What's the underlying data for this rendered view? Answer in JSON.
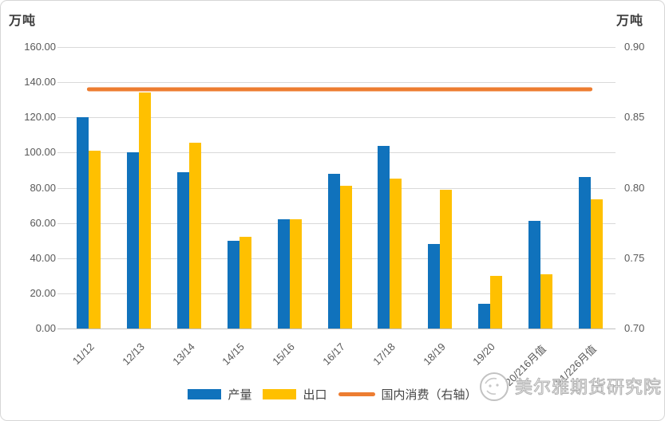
{
  "chart_data": {
    "type": "bar",
    "subtype": "grouped-bars-with-right-axis-line",
    "title": "",
    "categories": [
      "11/12",
      "12/13",
      "13/14",
      "14/15",
      "15/16",
      "16/17",
      "17/18",
      "18/19",
      "19/20",
      "20/216月值",
      "21/226月值"
    ],
    "series": [
      {
        "name": "产量",
        "type": "bar",
        "axis": "left",
        "color": "#1072BC",
        "values": [
          120,
          100,
          89,
          50,
          62,
          88,
          104,
          48,
          14,
          61,
          86
        ]
      },
      {
        "name": "出口",
        "type": "bar",
        "axis": "left",
        "color": "#FFC000",
        "values": [
          101,
          134,
          105.5,
          52,
          62,
          81,
          85,
          79,
          30,
          31,
          73.5
        ]
      },
      {
        "name": "国内消费（右轴）",
        "type": "line",
        "axis": "right",
        "color": "#ED7D31",
        "values": [
          0.87,
          0.87,
          0.87,
          0.87,
          0.87,
          0.87,
          0.87,
          0.87,
          0.87,
          0.87,
          0.87
        ]
      }
    ],
    "left_axis": {
      "title": "万吨",
      "min": 0,
      "max": 160,
      "tick_step": 20,
      "tick_labels": [
        "0.00",
        "20.00",
        "40.00",
        "60.00",
        "80.00",
        "100.00",
        "120.00",
        "140.00",
        "160.00"
      ]
    },
    "right_axis": {
      "title": "万吨",
      "min": 0.7,
      "max": 0.9,
      "tick_step": 0.05,
      "tick_labels": [
        "0.70",
        "0.75",
        "0.80",
        "0.85",
        "0.90"
      ]
    },
    "grid": true,
    "legend_position": "bottom"
  },
  "watermark": {
    "text": "美尔雅期货研究院"
  },
  "colors": {
    "axis_text": "#595959",
    "gridline": "#D9D9D9",
    "axis_line": "#BFBFBF",
    "frame_border": "#D6D6D6",
    "bar_blue": "#1072BC",
    "bar_yellow": "#FFC000",
    "line_orange": "#ED7D31"
  }
}
